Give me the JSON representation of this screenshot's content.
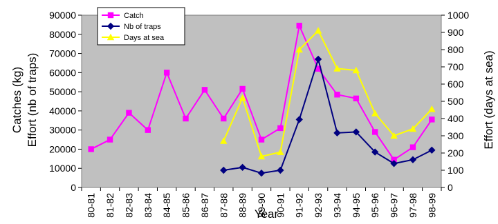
{
  "chart_data": {
    "type": "line",
    "title": "",
    "xlabel": "Year",
    "ylabel_left_line1": "Catches (kg)",
    "ylabel_left_line2": "Effort (nb of traps)",
    "ylabel_right": "Effort (days at sea)",
    "categories": [
      "80-81",
      "81-82",
      "82-83",
      "83-84",
      "84-85",
      "85-86",
      "86-87",
      "87-88",
      "88-89",
      "89-90",
      "90-91",
      "91-92",
      "92-93",
      "93-94",
      "94-95",
      "95-96",
      "96-97",
      "97-98",
      "98-99"
    ],
    "y_left_ticks": [
      "0",
      "10000",
      "20000",
      "30000",
      "40000",
      "50000",
      "60000",
      "70000",
      "80000",
      "90000"
    ],
    "y_right_ticks": [
      "0",
      "100",
      "200",
      "300",
      "400",
      "500",
      "600",
      "700",
      "800",
      "900",
      "1000"
    ],
    "ylim_left": [
      0,
      90000
    ],
    "ylim_right": [
      0,
      1000
    ],
    "grid": false,
    "legend_position": "top-left",
    "plot_background": "#c0c0c0",
    "series": [
      {
        "name": "Catch",
        "axis": "left",
        "color": "#ff00ff",
        "marker": "square",
        "values": [
          20000,
          25000,
          39000,
          30000,
          60000,
          36000,
          51000,
          36000,
          51500,
          25000,
          31000,
          84500,
          62000,
          48500,
          46500,
          29000,
          14500,
          21000,
          35500
        ]
      },
      {
        "name": "Nb of traps",
        "axis": "left",
        "color": "#000080",
        "marker": "diamond",
        "values": [
          null,
          null,
          null,
          null,
          null,
          null,
          null,
          9000,
          10500,
          7500,
          9000,
          35500,
          67000,
          28500,
          29000,
          18500,
          12500,
          14500,
          19500
        ]
      },
      {
        "name": "Days at sea",
        "axis": "right",
        "color": "#ffff00",
        "marker": "triangle",
        "values": [
          null,
          null,
          null,
          null,
          null,
          null,
          null,
          270,
          520,
          180,
          205,
          800,
          910,
          690,
          680,
          430,
          300,
          340,
          455
        ]
      }
    ]
  }
}
